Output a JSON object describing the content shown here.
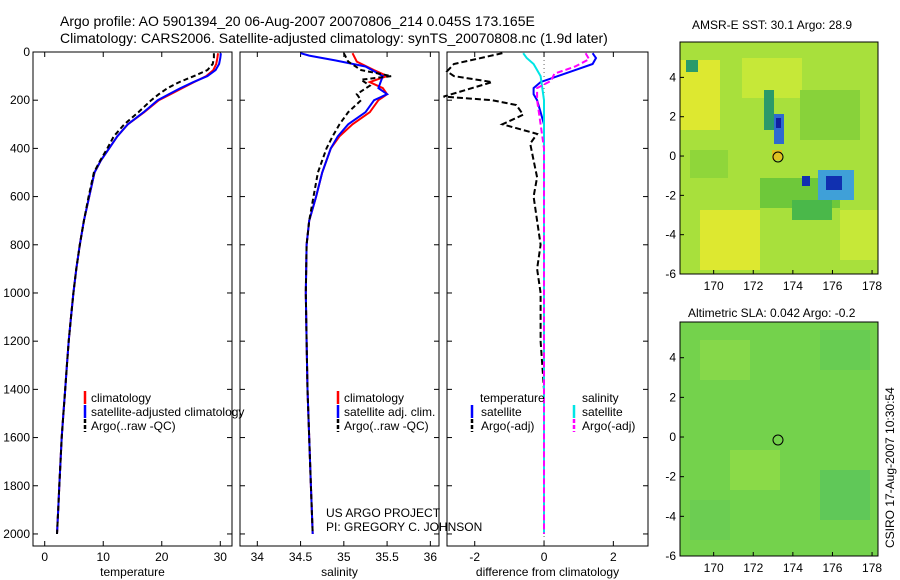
{
  "header": {
    "line1": "Argo profile: AO 5901394_20 06-Aug-2007 20070806_214 0.045S 173.165E",
    "line2": "Climatology: CARS2006. Satellite-adjusted climatology: synTS_20070808.nc (1.9d later)"
  },
  "colors": {
    "red": "#ff0000",
    "blue": "#0000ff",
    "black": "#000000",
    "cyan": "#00e5e5",
    "magenta": "#ff00ff"
  },
  "chart_data": [
    {
      "type": "line",
      "xlabel": "temperature",
      "ylabel": "",
      "xlim": [
        -2,
        32
      ],
      "ylim": [
        2050,
        0
      ],
      "xticks": [
        0,
        10,
        20,
        30
      ],
      "yticks": [
        0,
        200,
        400,
        600,
        800,
        1000,
        1200,
        1400,
        1600,
        1800,
        2000
      ],
      "legend": [
        "climatology",
        "satellite-adjusted climatology",
        "Argo(..raw -QC)"
      ],
      "legend_position": "bottom-right",
      "series": [
        {
          "name": "climatology",
          "color": "red",
          "dash": "",
          "points": [
            [
              29.6,
              5
            ],
            [
              29.5,
              25
            ],
            [
              29.3,
              50
            ],
            [
              28.8,
              75
            ],
            [
              27.6,
              100
            ],
            [
              25.5,
              125
            ],
            [
              23.5,
              150
            ],
            [
              21.5,
              175
            ],
            [
              19.5,
              200
            ],
            [
              17,
              250
            ],
            [
              14.2,
              300
            ],
            [
              12.4,
              350
            ],
            [
              11,
              400
            ],
            [
              9.6,
              450
            ],
            [
              8.5,
              500
            ],
            [
              7.6,
              600
            ],
            [
              6.7,
              700
            ],
            [
              6.0,
              800
            ],
            [
              5.4,
              900
            ],
            [
              4.9,
              1000
            ],
            [
              4.5,
              1100
            ],
            [
              4.1,
              1200
            ],
            [
              3.8,
              1300
            ],
            [
              3.5,
              1400
            ],
            [
              3.2,
              1500
            ],
            [
              2.9,
              1600
            ],
            [
              2.7,
              1700
            ],
            [
              2.5,
              1800
            ],
            [
              2.3,
              1900
            ],
            [
              2.1,
              2000
            ]
          ]
        },
        {
          "name": "satellite-adjusted climatology",
          "color": "blue",
          "dash": "",
          "points": [
            [
              30.1,
              5
            ],
            [
              30.0,
              25
            ],
            [
              29.8,
              50
            ],
            [
              29.2,
              75
            ],
            [
              27.8,
              100
            ],
            [
              25.4,
              125
            ],
            [
              23.2,
              150
            ],
            [
              21.2,
              175
            ],
            [
              19.3,
              200
            ],
            [
              16.9,
              250
            ],
            [
              14.2,
              300
            ],
            [
              12.4,
              350
            ],
            [
              11,
              400
            ],
            [
              9.6,
              450
            ],
            [
              8.5,
              500
            ],
            [
              7.6,
              600
            ],
            [
              6.7,
              700
            ],
            [
              6.0,
              800
            ],
            [
              5.4,
              900
            ],
            [
              4.9,
              1000
            ],
            [
              4.5,
              1100
            ],
            [
              4.1,
              1200
            ],
            [
              3.8,
              1300
            ],
            [
              3.5,
              1400
            ],
            [
              3.2,
              1500
            ],
            [
              2.9,
              1600
            ],
            [
              2.7,
              1700
            ],
            [
              2.5,
              1800
            ],
            [
              2.3,
              1900
            ],
            [
              2.1,
              2000
            ]
          ]
        },
        {
          "name": "Argo(..raw -QC)",
          "color": "black",
          "dash": "5,3",
          "points": [
            [
              28.9,
              5
            ],
            [
              28.9,
              25
            ],
            [
              28.7,
              50
            ],
            [
              27.8,
              75
            ],
            [
              25.5,
              100
            ],
            [
              23,
              125
            ],
            [
              21,
              150
            ],
            [
              19.5,
              175
            ],
            [
              18.2,
              200
            ],
            [
              16,
              250
            ],
            [
              13.6,
              300
            ],
            [
              11.8,
              350
            ],
            [
              10.7,
              400
            ],
            [
              9.5,
              450
            ],
            [
              8.4,
              500
            ],
            [
              7.5,
              600
            ],
            [
              6.7,
              700
            ],
            [
              6.0,
              800
            ],
            [
              5.4,
              900
            ],
            [
              4.9,
              1000
            ],
            [
              4.5,
              1100
            ],
            [
              4.1,
              1200
            ],
            [
              3.8,
              1300
            ],
            [
              3.5,
              1400
            ],
            [
              3.2,
              1500
            ],
            [
              2.9,
              1600
            ],
            [
              2.7,
              1700
            ],
            [
              2.5,
              1800
            ],
            [
              2.3,
              1900
            ],
            [
              2.1,
              2000
            ]
          ]
        }
      ]
    },
    {
      "type": "line",
      "xlabel": "salinity",
      "xlim": [
        33.8,
        36.1
      ],
      "ylim": [
        2050,
        0
      ],
      "xticks": [
        34,
        34.5,
        35,
        35.5,
        36
      ],
      "legend": [
        "climatology",
        "satellite adj. clim.",
        "Argo(..raw -QC)"
      ],
      "legend_position": "bottom-right",
      "series": [
        {
          "name": "climatology",
          "color": "red",
          "dash": "",
          "points": [
            [
              35.1,
              5
            ],
            [
              35.15,
              40
            ],
            [
              35.35,
              75
            ],
            [
              35.5,
              100
            ],
            [
              35.3,
              125
            ],
            [
              35.45,
              150
            ],
            [
              35.5,
              175
            ],
            [
              35.4,
              200
            ],
            [
              35.3,
              250
            ],
            [
              35.1,
              300
            ],
            [
              34.95,
              350
            ],
            [
              34.85,
              400
            ],
            [
              34.75,
              500
            ],
            [
              34.68,
              600
            ],
            [
              34.6,
              700
            ],
            [
              34.57,
              800
            ],
            [
              34.56,
              1000
            ],
            [
              34.57,
              1200
            ],
            [
              34.58,
              1400
            ],
            [
              34.6,
              1600
            ],
            [
              34.62,
              1800
            ],
            [
              34.64,
              2000
            ]
          ]
        },
        {
          "name": "satellite adj. clim.",
          "color": "blue",
          "dash": "",
          "points": [
            [
              34.5,
              5
            ],
            [
              34.6,
              15
            ],
            [
              34.9,
              35
            ],
            [
              35.25,
              60
            ],
            [
              35.45,
              100
            ],
            [
              35.4,
              150
            ],
            [
              35.5,
              175
            ],
            [
              35.35,
              200
            ],
            [
              35.25,
              250
            ],
            [
              35.05,
              300
            ],
            [
              34.93,
              350
            ],
            [
              34.85,
              400
            ],
            [
              34.75,
              500
            ],
            [
              34.68,
              600
            ],
            [
              34.6,
              700
            ],
            [
              34.57,
              800
            ],
            [
              34.56,
              1000
            ],
            [
              34.57,
              1200
            ],
            [
              34.58,
              1400
            ],
            [
              34.6,
              1600
            ],
            [
              34.62,
              1800
            ],
            [
              34.64,
              2000
            ]
          ]
        },
        {
          "name": "Argo(..raw -QC)",
          "color": "black",
          "dash": "5,3",
          "points": [
            [
              35.0,
              5
            ],
            [
              35.05,
              40
            ],
            [
              35.2,
              75
            ],
            [
              35.55,
              100
            ],
            [
              35.2,
              115
            ],
            [
              35.3,
              140
            ],
            [
              35.15,
              175
            ],
            [
              35.2,
              200
            ],
            [
              35.05,
              250
            ],
            [
              34.95,
              300
            ],
            [
              34.87,
              350
            ],
            [
              34.8,
              400
            ],
            [
              34.7,
              500
            ],
            [
              34.65,
              600
            ],
            [
              34.6,
              700
            ],
            [
              34.57,
              800
            ],
            [
              34.56,
              1000
            ],
            [
              34.57,
              1200
            ],
            [
              34.58,
              1400
            ],
            [
              34.6,
              1600
            ],
            [
              34.62,
              1800
            ],
            [
              34.64,
              2000
            ]
          ]
        }
      ]
    },
    {
      "type": "line",
      "xlabel": "difference from climatology",
      "xlim": [
        -2.8,
        3
      ],
      "ylim": [
        2050,
        0
      ],
      "xticks": [
        -2,
        0,
        2
      ],
      "legend": [
        "temperature",
        "satellite",
        "Argo(-adj)",
        "salinity",
        "satellite",
        "Argo(-adj)"
      ],
      "legend_position": "bottom",
      "series": [
        {
          "name": "temperature satellite",
          "color": "blue",
          "dash": "",
          "points": [
            [
              1.4,
              5
            ],
            [
              1.5,
              25
            ],
            [
              1.4,
              50
            ],
            [
              0.9,
              75
            ],
            [
              0.4,
              100
            ],
            [
              -0.1,
              125
            ],
            [
              -0.3,
              150
            ],
            [
              -0.3,
              175
            ],
            [
              -0.2,
              200
            ],
            [
              -0.1,
              250
            ],
            [
              0,
              300
            ],
            [
              0,
              2000
            ]
          ]
        },
        {
          "name": "temperature Argo(-adj)",
          "color": "black",
          "dash": "6,3",
          "points": [
            [
              -1.2,
              5
            ],
            [
              -2.6,
              50
            ],
            [
              -2.8,
              80
            ],
            [
              -2.6,
              100
            ],
            [
              -1.5,
              125
            ],
            [
              -2.9,
              185
            ],
            [
              -1.5,
              200
            ],
            [
              -0.8,
              220
            ],
            [
              -0.6,
              260
            ],
            [
              -1.2,
              300
            ],
            [
              -0.2,
              340
            ],
            [
              -0.4,
              380
            ],
            [
              -0.3,
              450
            ],
            [
              -0.2,
              520
            ],
            [
              -0.3,
              600
            ],
            [
              -0.2,
              700
            ],
            [
              -0.1,
              800
            ],
            [
              -0.2,
              900
            ],
            [
              -0.1,
              1000
            ],
            [
              -0.1,
              1200
            ],
            [
              0,
              1400
            ],
            [
              0,
              2000
            ]
          ]
        },
        {
          "name": "salinity satellite",
          "color": "cyan",
          "dash": "",
          "points": [
            [
              -0.6,
              5
            ],
            [
              -0.5,
              25
            ],
            [
              -0.3,
              50
            ],
            [
              -0.1,
              100
            ],
            [
              0,
              200
            ],
            [
              0,
              2000
            ]
          ]
        },
        {
          "name": "salinity Argo(-adj)",
          "color": "magenta",
          "dash": "6,3",
          "points": [
            [
              1.2,
              5
            ],
            [
              1.3,
              30
            ],
            [
              0.9,
              60
            ],
            [
              0.3,
              90
            ],
            [
              0.2,
              120
            ],
            [
              -0.2,
              150
            ],
            [
              -0.2,
              200
            ],
            [
              -0.1,
              300
            ],
            [
              0,
              400
            ],
            [
              0,
              2000
            ]
          ]
        }
      ]
    }
  ],
  "maps": {
    "sst": {
      "title": "AMSR-E SST: 30.1  Argo: 28.9",
      "xticks": [
        "170",
        "172",
        "174",
        "176",
        "178"
      ],
      "yticks": [
        "4",
        "2",
        "0",
        "-2",
        "-4",
        "-6"
      ]
    },
    "sla": {
      "title": "Altimetric SLA: 0.042  Argo: -0.2",
      "xticks": [
        "170",
        "172",
        "174",
        "176",
        "178"
      ],
      "yticks": [
        "4",
        "2",
        "0",
        "-2",
        "-4",
        "-6"
      ]
    }
  },
  "footer": {
    "project1": "US ARGO PROJECT",
    "project2": "PI: GREGORY C. JOHNSON",
    "credit": "CSIRO 17-Aug-2007 10:30:54"
  }
}
